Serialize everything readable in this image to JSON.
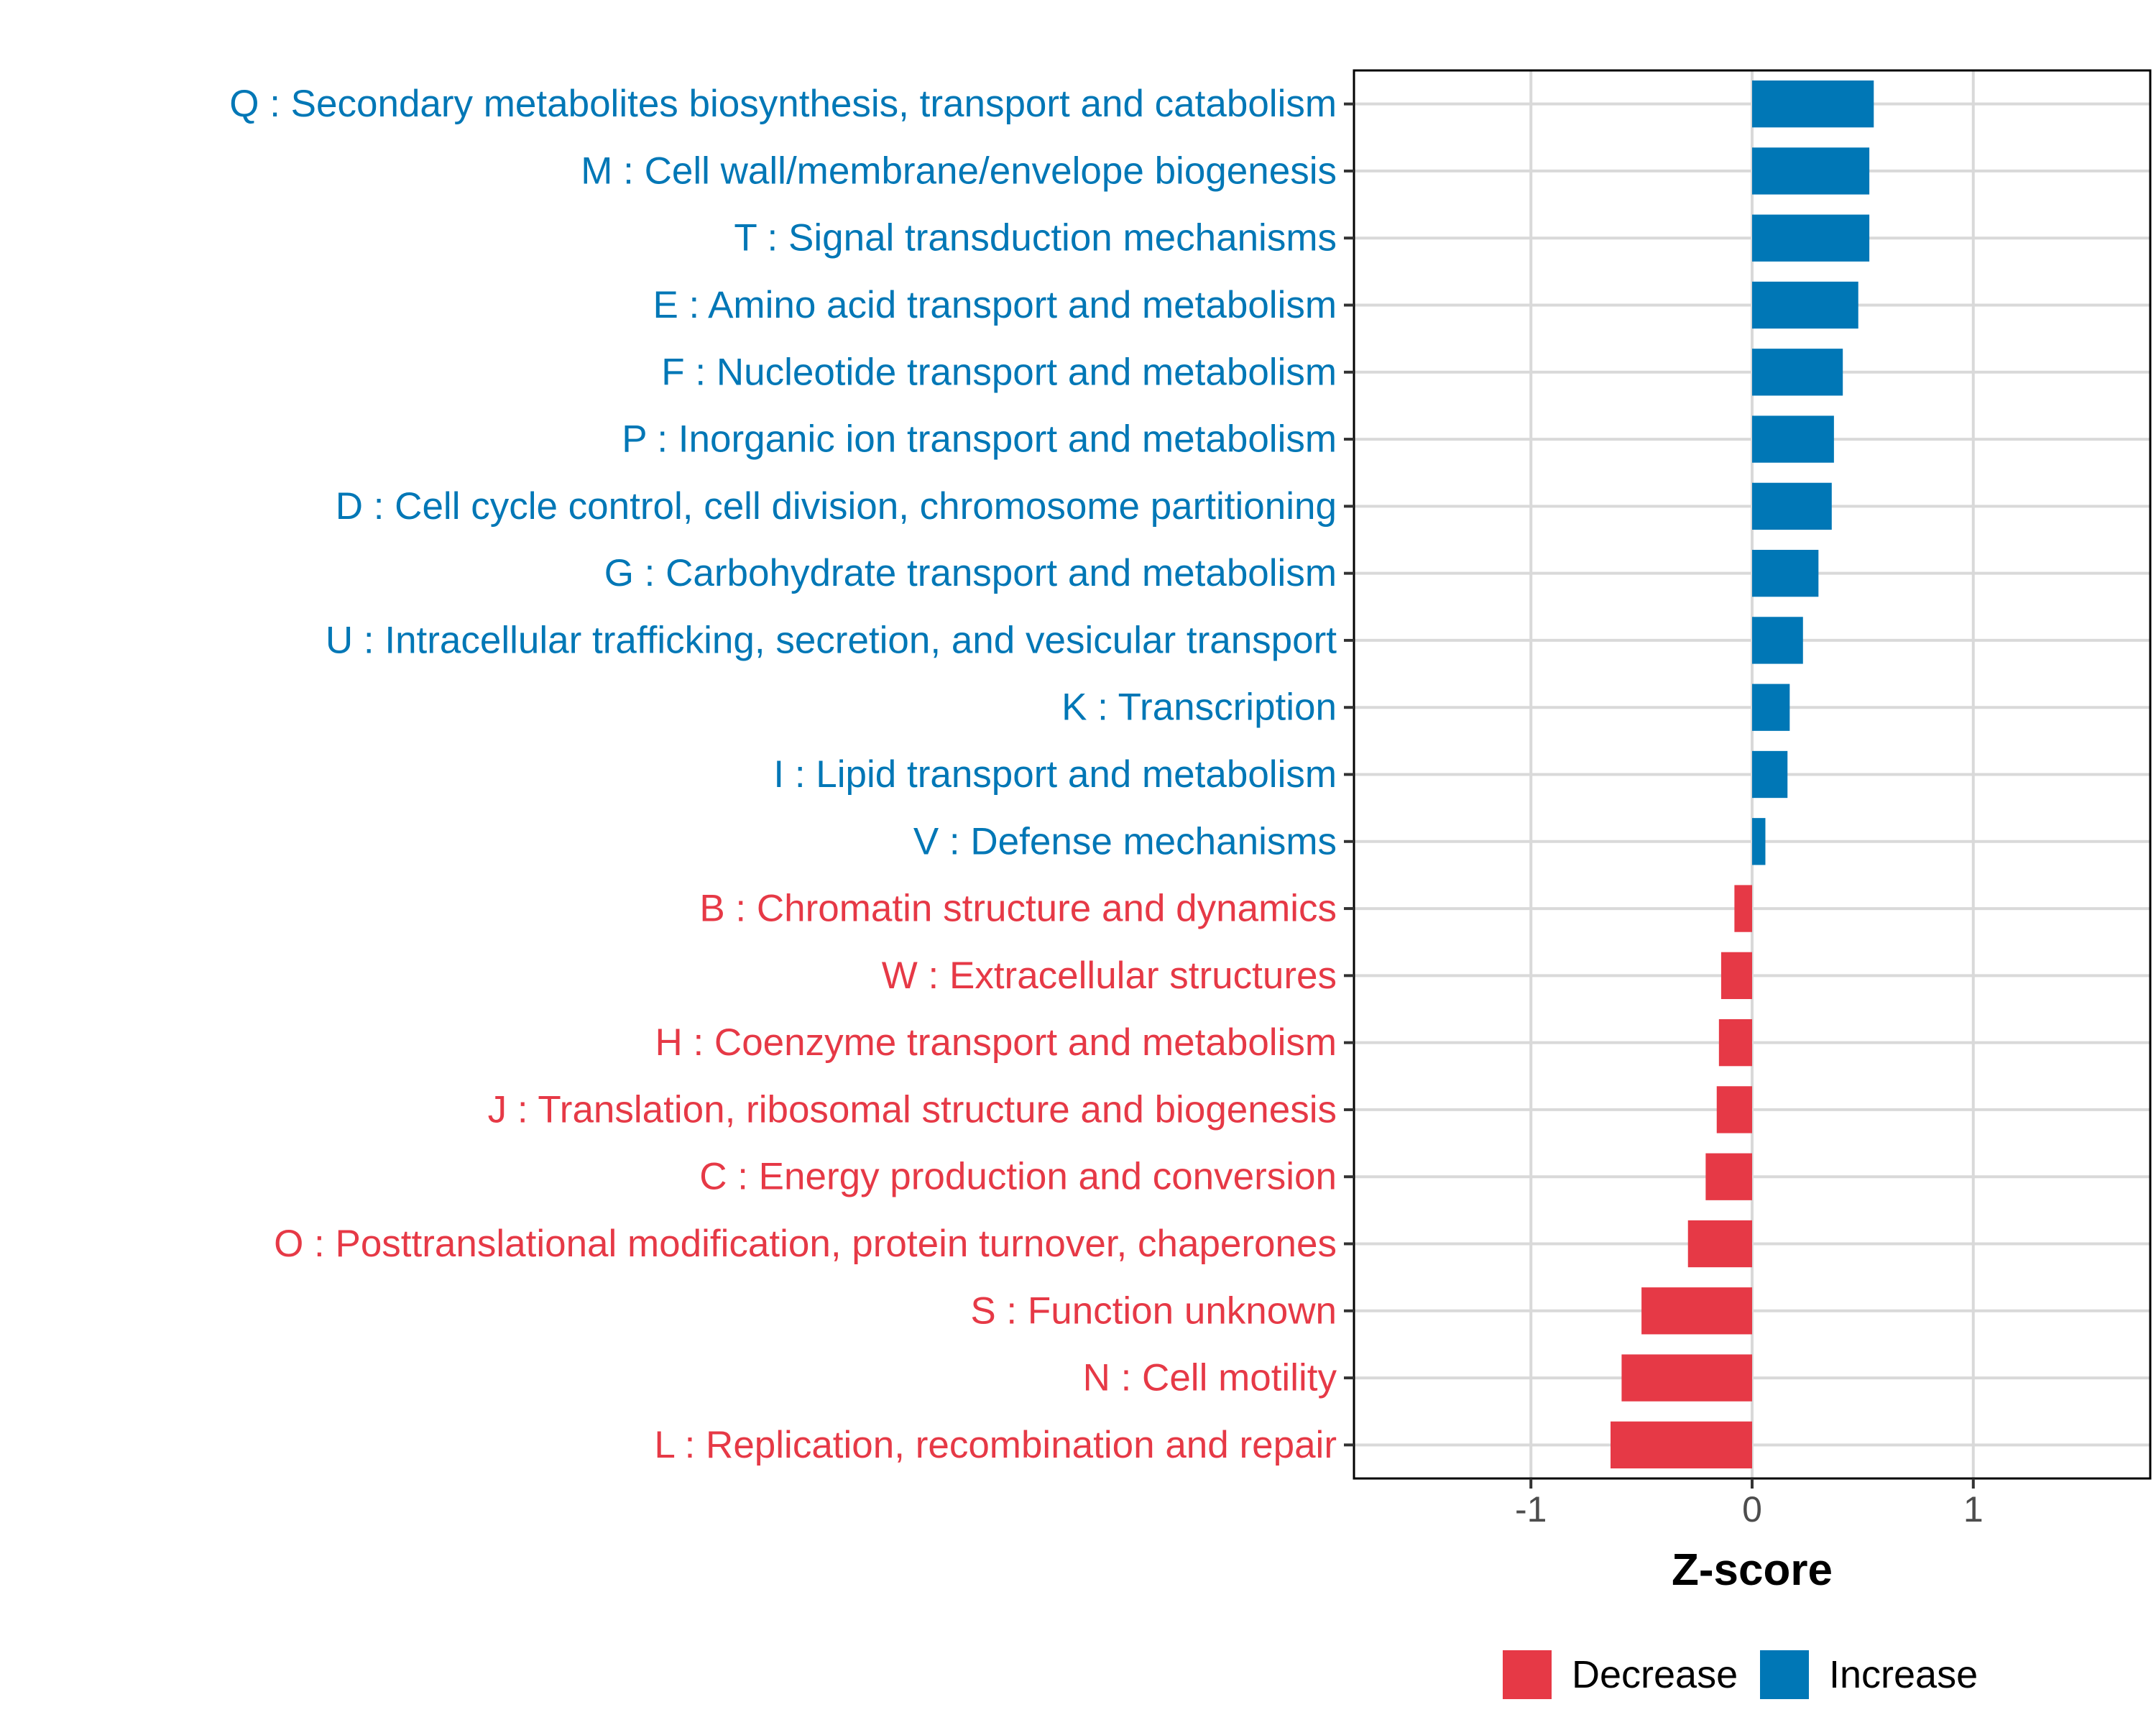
{
  "chart_data": {
    "type": "bar",
    "orientation": "horizontal",
    "title": "",
    "xlabel": "Z-score",
    "ylabel": "",
    "xlim": [
      -1.8,
      1.8
    ],
    "xticks": [
      -1,
      0,
      1
    ],
    "xtick_labels": [
      "-1",
      "0",
      "1"
    ],
    "grid": true,
    "categories": [
      "Q : Secondary metabolites biosynthesis, transport and catabolism",
      "M : Cell wall/membrane/envelope biogenesis",
      "T : Signal transduction mechanisms",
      "E : Amino acid transport and metabolism",
      "F : Nucleotide transport and metabolism",
      "P : Inorganic ion transport and metabolism",
      "D : Cell cycle control, cell division, chromosome partitioning",
      "G : Carbohydrate transport and metabolism",
      "U : Intracellular trafficking, secretion, and vesicular transport",
      "K : Transcription",
      "I : Lipid transport and metabolism",
      "V : Defense mechanisms",
      "B : Chromatin structure and dynamics",
      "W : Extracellular structures",
      "H : Coenzyme transport and metabolism",
      "J : Translation, ribosomal structure and biogenesis",
      "C : Energy production and conversion",
      "O : Posttranslational modification, protein turnover, chaperones",
      "S : Function unknown",
      "N : Cell motility",
      "L : Replication, recombination and repair"
    ],
    "values": [
      0.55,
      0.53,
      0.53,
      0.48,
      0.41,
      0.37,
      0.36,
      0.3,
      0.23,
      0.17,
      0.16,
      0.06,
      -0.08,
      -0.14,
      -0.15,
      -0.16,
      -0.21,
      -0.29,
      -0.5,
      -0.59,
      -0.64
    ],
    "groups": [
      "Increase",
      "Increase",
      "Increase",
      "Increase",
      "Increase",
      "Increase",
      "Increase",
      "Increase",
      "Increase",
      "Increase",
      "Increase",
      "Increase",
      "Decrease",
      "Decrease",
      "Decrease",
      "Decrease",
      "Decrease",
      "Decrease",
      "Decrease",
      "Decrease",
      "Decrease"
    ],
    "legend": {
      "position": "bottom",
      "entries": [
        {
          "label": "Decrease",
          "color": "#e63946"
        },
        {
          "label": "Increase",
          "color": "#0077b6"
        }
      ]
    }
  }
}
